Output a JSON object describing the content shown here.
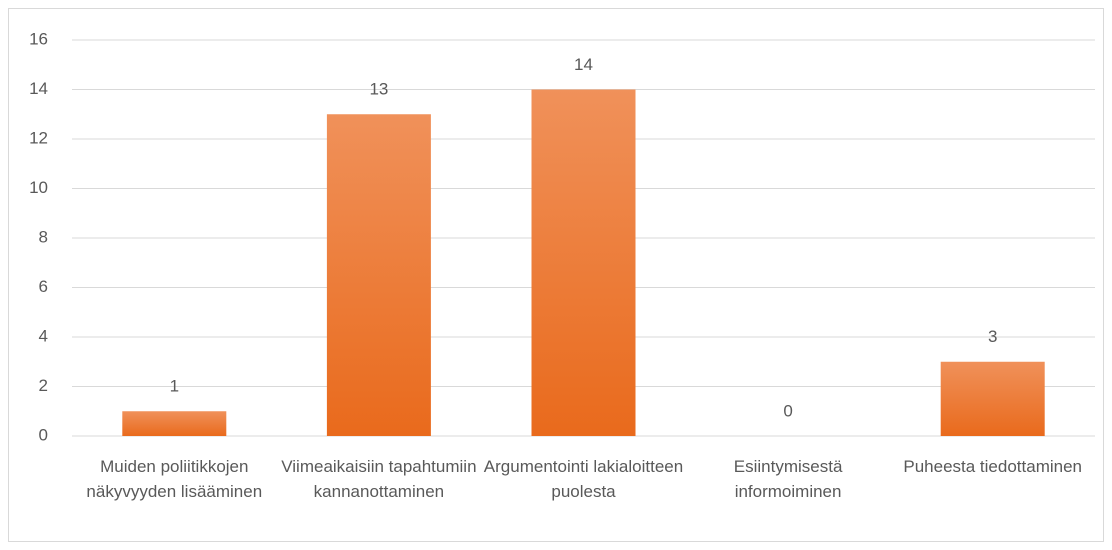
{
  "chart_data": {
    "type": "bar",
    "categories": [
      "Muiden poliitikkojen näkyvyyden lisääminen",
      "Viimeaikaisiin tapahtumiin kannanottaminen",
      "Argumentointi lakialoitteen puolesta",
      "Esiintymisestä informoiminen",
      "Puheesta tiedottaminen"
    ],
    "values": [
      1,
      13,
      14,
      0,
      3
    ],
    "color": "#ed7d31",
    "ylim": [
      0,
      16
    ],
    "yticks": [
      0,
      2,
      4,
      6,
      8,
      10,
      12,
      14,
      16
    ],
    "grid": true
  }
}
